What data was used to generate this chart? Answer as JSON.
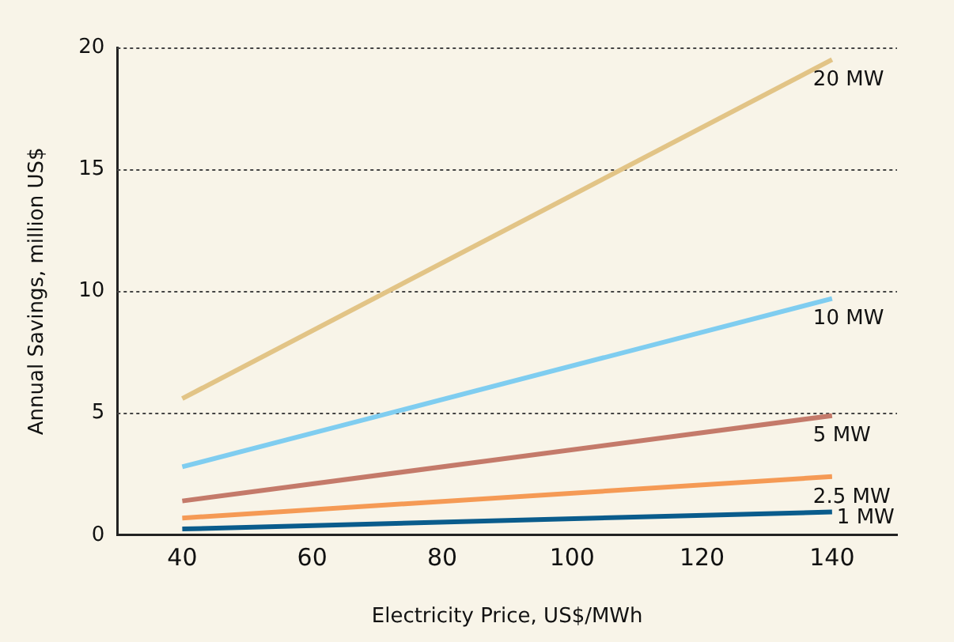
{
  "chart_data": {
    "type": "line",
    "xlabel": "Electricity Price, US$/MWh",
    "ylabel": "Annual Savings, million US$",
    "xlim": [
      30,
      150
    ],
    "xticks": [
      40,
      60,
      80,
      100,
      120,
      140
    ],
    "ylim": [
      0,
      20
    ],
    "yticks": [
      0,
      5,
      10,
      15,
      20
    ],
    "grid": "y",
    "legend": false,
    "marker": "none",
    "line_style": "solid",
    "x": [
      40,
      140
    ],
    "series": [
      {
        "name": "20 MW",
        "color": "#e2c486",
        "values": [
          5.6,
          19.5
        ]
      },
      {
        "name": "10 MW",
        "color": "#7fcdf0",
        "values": [
          2.8,
          9.7
        ]
      },
      {
        "name": "5 MW",
        "color": "#c47a6a",
        "values": [
          1.4,
          4.9
        ]
      },
      {
        "name": "2.5 MW",
        "color": "#f59a55",
        "values": [
          0.7,
          2.4
        ]
      },
      {
        "name": "1 MW",
        "color": "#0a5c8c",
        "values": [
          0.25,
          0.95
        ]
      }
    ]
  }
}
